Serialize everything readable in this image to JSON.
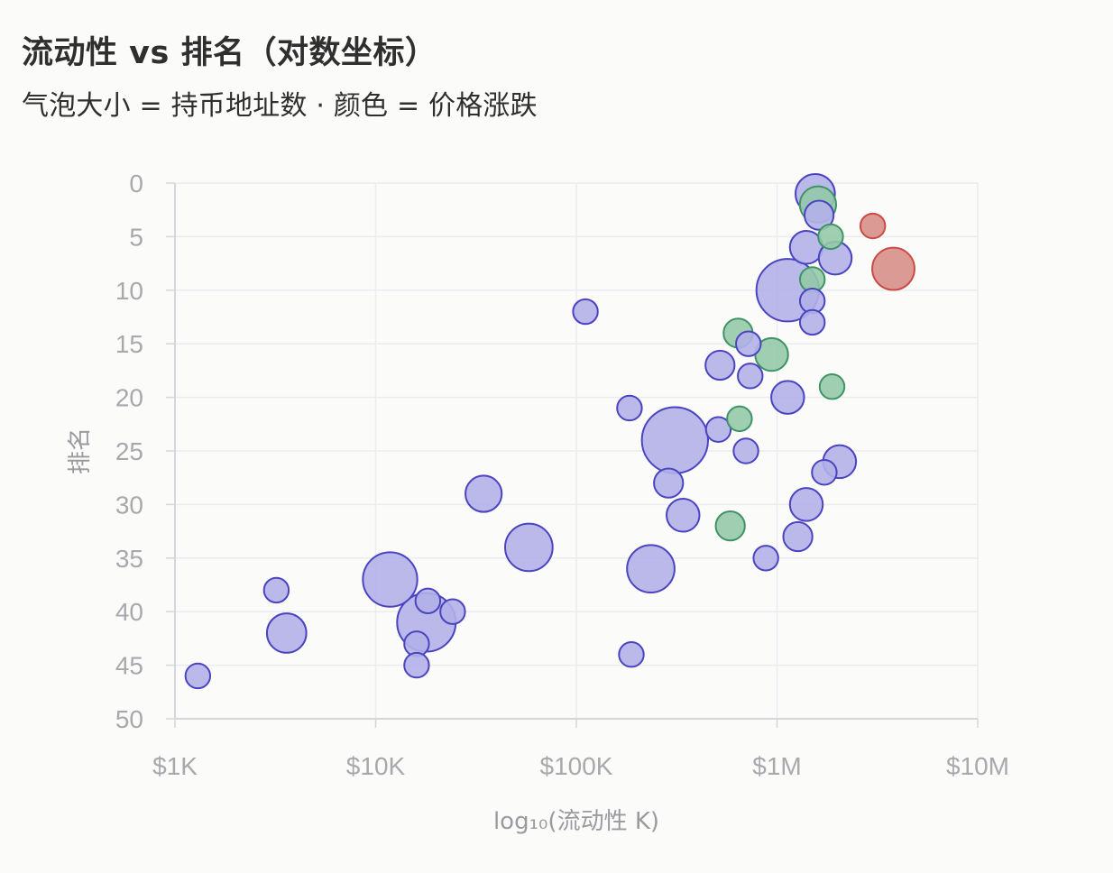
{
  "chart_data": {
    "type": "scatter",
    "title": "流动性 vs 排名（对数坐标）",
    "subtitle": "气泡大小 = 持币地址数 · 颜色 = 价格涨跌",
    "xlabel": "log₁₀(流动性 K)",
    "ylabel": "排名",
    "x_scale": "log",
    "xlim": [
      1,
      10000
    ],
    "ylim": [
      0,
      50
    ],
    "y_inverted": true,
    "grid": true,
    "x_ticks": [
      {
        "value": 1,
        "label": "$1K"
      },
      {
        "value": 10,
        "label": "$10K"
      },
      {
        "value": 100,
        "label": "$100K"
      },
      {
        "value": 1000,
        "label": "$1M"
      },
      {
        "value": 10000,
        "label": "$10M"
      }
    ],
    "y_ticks": [
      {
        "value": 0,
        "label": "0"
      },
      {
        "value": 5,
        "label": "5"
      },
      {
        "value": 10,
        "label": "10"
      },
      {
        "value": 15,
        "label": "15"
      },
      {
        "value": 20,
        "label": "20"
      },
      {
        "value": 25,
        "label": "25"
      },
      {
        "value": 30,
        "label": "30"
      },
      {
        "value": 35,
        "label": "35"
      },
      {
        "value": 40,
        "label": "40"
      },
      {
        "value": 45,
        "label": "45"
      },
      {
        "value": 50,
        "label": "50"
      }
    ],
    "colors": {
      "neutral": {
        "fill": "#b3b1e8",
        "stroke": "#4a44c0"
      },
      "up": {
        "fill": "#95c9a8",
        "stroke": "#3e9464"
      },
      "down": {
        "fill": "#d88f89",
        "stroke": "#cc4a43"
      }
    },
    "points": [
      {
        "x": 1.3,
        "y": 46,
        "size": 2,
        "color": "neutral"
      },
      {
        "x": 3.2,
        "y": 38,
        "size": 2,
        "color": "neutral"
      },
      {
        "x": 3.6,
        "y": 42,
        "size": 6,
        "color": "neutral"
      },
      {
        "x": 11.8,
        "y": 37,
        "size": 12,
        "color": "neutral"
      },
      {
        "x": 16.0,
        "y": 43,
        "size": 2,
        "color": "neutral"
      },
      {
        "x": 16.0,
        "y": 45,
        "size": 2,
        "color": "neutral"
      },
      {
        "x": 18.2,
        "y": 39,
        "size": 2,
        "color": "neutral"
      },
      {
        "x": 17.9,
        "y": 41,
        "size": 14,
        "color": "neutral"
      },
      {
        "x": 24.2,
        "y": 40,
        "size": 2,
        "color": "neutral"
      },
      {
        "x": 34.5,
        "y": 29,
        "size": 5,
        "color": "neutral"
      },
      {
        "x": 58,
        "y": 34,
        "size": 9,
        "color": "neutral"
      },
      {
        "x": 111,
        "y": 12,
        "size": 2,
        "color": "neutral"
      },
      {
        "x": 184,
        "y": 21,
        "size": 2,
        "color": "neutral"
      },
      {
        "x": 188,
        "y": 44,
        "size": 2,
        "color": "neutral"
      },
      {
        "x": 235,
        "y": 36,
        "size": 9,
        "color": "neutral"
      },
      {
        "x": 288,
        "y": 28,
        "size": 3,
        "color": "neutral"
      },
      {
        "x": 310,
        "y": 24,
        "size": 18,
        "color": "neutral"
      },
      {
        "x": 340,
        "y": 31,
        "size": 4,
        "color": "neutral"
      },
      {
        "x": 510,
        "y": 23,
        "size": 2,
        "color": "neutral"
      },
      {
        "x": 520,
        "y": 17,
        "size": 3,
        "color": "neutral"
      },
      {
        "x": 585,
        "y": 32,
        "size": 3,
        "color": "up"
      },
      {
        "x": 640,
        "y": 14,
        "size": 3,
        "color": "up"
      },
      {
        "x": 650,
        "y": 22,
        "size": 2,
        "color": "up"
      },
      {
        "x": 700,
        "y": 25,
        "size": 2,
        "color": "neutral"
      },
      {
        "x": 720,
        "y": 15,
        "size": 2,
        "color": "neutral"
      },
      {
        "x": 735,
        "y": 18,
        "size": 2,
        "color": "neutral"
      },
      {
        "x": 880,
        "y": 35,
        "size": 2,
        "color": "neutral"
      },
      {
        "x": 940,
        "y": 16,
        "size": 4,
        "color": "up"
      },
      {
        "x": 1130,
        "y": 10,
        "size": 16,
        "color": "neutral"
      },
      {
        "x": 1130,
        "y": 20,
        "size": 4,
        "color": "neutral"
      },
      {
        "x": 1270,
        "y": 33,
        "size": 3,
        "color": "neutral"
      },
      {
        "x": 1400,
        "y": 6,
        "size": 4,
        "color": "neutral"
      },
      {
        "x": 1400,
        "y": 30,
        "size": 4,
        "color": "neutral"
      },
      {
        "x": 1500,
        "y": 9,
        "size": 2,
        "color": "up"
      },
      {
        "x": 1500,
        "y": 11,
        "size": 2,
        "color": "neutral"
      },
      {
        "x": 1500,
        "y": 13,
        "size": 2,
        "color": "neutral"
      },
      {
        "x": 1550,
        "y": 1,
        "size": 6,
        "color": "neutral"
      },
      {
        "x": 1600,
        "y": 2,
        "size": 5,
        "color": "up"
      },
      {
        "x": 1620,
        "y": 3,
        "size": 3,
        "color": "neutral"
      },
      {
        "x": 1720,
        "y": 27,
        "size": 2,
        "color": "neutral"
      },
      {
        "x": 1850,
        "y": 5,
        "size": 2,
        "color": "up"
      },
      {
        "x": 1880,
        "y": 19,
        "size": 2,
        "color": "up"
      },
      {
        "x": 1950,
        "y": 7,
        "size": 4,
        "color": "neutral"
      },
      {
        "x": 2050,
        "y": 26,
        "size": 4,
        "color": "neutral"
      },
      {
        "x": 3000,
        "y": 4,
        "size": 2,
        "color": "down"
      },
      {
        "x": 3800,
        "y": 8,
        "size": 7,
        "color": "down"
      }
    ]
  }
}
